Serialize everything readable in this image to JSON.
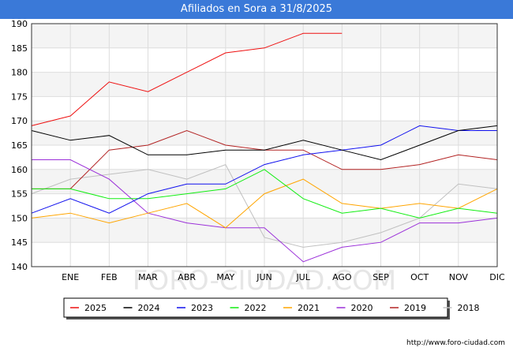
{
  "header": {
    "title": "Afiliados en Sora a 31/8/2025"
  },
  "watermark": "FORO-CIUDAD.COM",
  "footer": {
    "url": "http://www.foro-ciudad.com"
  },
  "chart_data": {
    "type": "line",
    "title": "Afiliados en Sora a 31/8/2025",
    "x_tick_labels": [
      "",
      "ENE",
      "FEB",
      "MAR",
      "ABR",
      "MAY",
      "JUN",
      "JUL",
      "AGO",
      "SEP",
      "OCT",
      "NOV",
      "DIC"
    ],
    "ylim": [
      140,
      190
    ],
    "y_ticks": [
      140,
      145,
      150,
      155,
      160,
      165,
      170,
      175,
      180,
      185,
      190
    ],
    "grid": true,
    "legend_position": "bottom",
    "series": [
      {
        "name": "2025",
        "color": "#ee1111",
        "values": [
          169,
          171,
          178,
          176,
          180,
          184,
          185,
          188,
          188
        ]
      },
      {
        "name": "2024",
        "color": "#000000",
        "values": [
          168,
          166,
          167,
          163,
          163,
          164,
          164,
          166,
          164,
          162,
          165,
          168,
          169
        ]
      },
      {
        "name": "2023",
        "color": "#1111ee",
        "values": [
          151,
          154,
          151,
          155,
          157,
          157,
          161,
          163,
          164,
          165,
          169,
          168,
          168
        ]
      },
      {
        "name": "2022",
        "color": "#11ee11",
        "values": [
          156,
          156,
          154,
          154,
          155,
          156,
          160,
          154,
          151,
          152,
          150,
          152,
          151
        ]
      },
      {
        "name": "2021",
        "color": "#ffa500",
        "values": [
          150,
          151,
          149,
          151,
          153,
          148,
          155,
          158,
          153,
          152,
          153,
          152,
          156
        ]
      },
      {
        "name": "2020",
        "color": "#9b30d9",
        "values": [
          162,
          162,
          158,
          151,
          149,
          148,
          148,
          141,
          144,
          145,
          149,
          149,
          150
        ]
      },
      {
        "name": "2019",
        "color": "#b22222",
        "values": [
          156,
          156,
          164,
          165,
          168,
          165,
          164,
          164,
          160,
          160,
          161,
          163,
          162
        ]
      },
      {
        "name": "2018",
        "color": "#c0c0c0",
        "values": [
          155,
          158,
          159,
          160,
          158,
          161,
          146,
          144,
          145,
          147,
          150,
          157,
          156
        ]
      }
    ]
  }
}
